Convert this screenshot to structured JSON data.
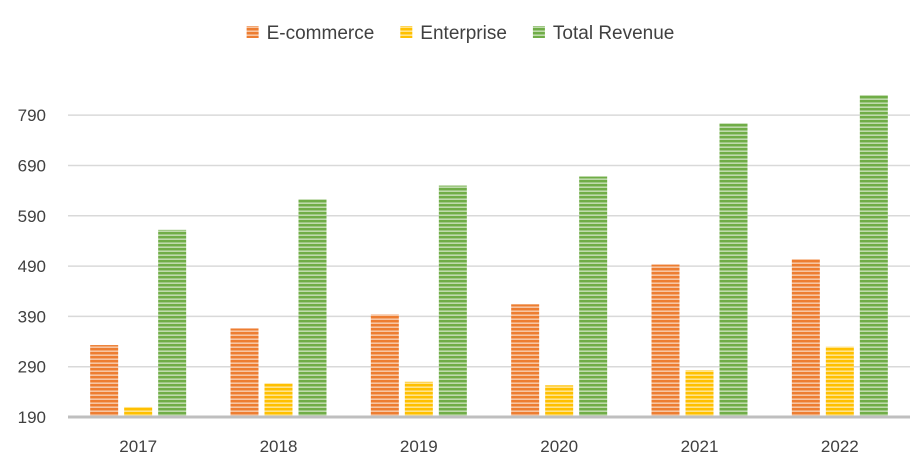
{
  "chart_data": {
    "type": "bar",
    "title": "",
    "xlabel": "",
    "ylabel": "",
    "categories": [
      "2017",
      "2018",
      "2019",
      "2020",
      "2021",
      "2022"
    ],
    "series": [
      {
        "name": "E-commerce",
        "color": "#ED7D31",
        "values": [
          333,
          366,
          394,
          414,
          493,
          504
        ]
      },
      {
        "name": "Enterprise",
        "color": "#FFC000",
        "values": [
          210,
          257,
          260,
          253,
          283,
          330
        ]
      },
      {
        "name": "Total Revenue",
        "color": "#70AD47",
        "values": [
          562,
          623,
          650,
          668,
          774,
          830
        ]
      }
    ],
    "ylim": [
      190,
      840
    ],
    "yticks": [
      190,
      290,
      390,
      490,
      590,
      690,
      790
    ],
    "grid": true,
    "legend_position": "top",
    "bar_style": "horizontal-striped"
  }
}
